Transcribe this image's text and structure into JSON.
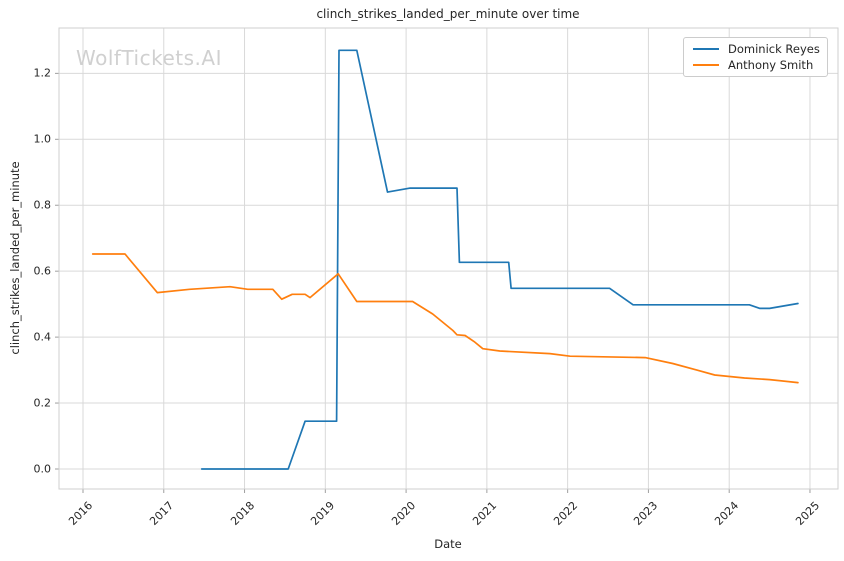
{
  "watermark": "WolfTickets.AI",
  "colors": {
    "series_blue": "#1f77b4",
    "series_orange": "#ff7f0e",
    "grid": "#d9d9d9",
    "spine": "#cfcfcf",
    "tick": "#9e9e9e",
    "text": "#262626"
  },
  "chart_data": {
    "type": "line",
    "title": "clinch_strikes_landed_per_minute over time",
    "xlabel": "Date",
    "ylabel": "clinch_strikes_landed_per_minute",
    "x_ticks": [
      2016,
      2017,
      2018,
      2019,
      2020,
      2021,
      2022,
      2023,
      2024,
      2025
    ],
    "y_ticks": [
      0.0,
      0.2,
      0.4,
      0.6,
      0.8,
      1.0,
      1.2
    ],
    "xlim": [
      2015.703,
      2025.347
    ],
    "ylim": [
      -0.0607,
      1.3376
    ],
    "grid": true,
    "legend_position": "upper right",
    "series": [
      {
        "name": "Dominick Reyes",
        "color": "#1f77b4",
        "x": [
          2017.47,
          2018.54,
          2018.75,
          2019.14,
          2019.17,
          2019.39,
          2019.77,
          2020.05,
          2020.63,
          2020.66,
          2021.27,
          2021.3,
          2022.52,
          2022.81,
          2024.25,
          2024.38,
          2024.5,
          2024.85
        ],
        "y": [
          0.0,
          0.0,
          0.145,
          0.145,
          1.27,
          1.27,
          0.84,
          0.852,
          0.852,
          0.627,
          0.627,
          0.548,
          0.548,
          0.498,
          0.498,
          0.487,
          0.487,
          0.502
        ]
      },
      {
        "name": "Anthony Smith",
        "color": "#ff7f0e",
        "x": [
          2016.12,
          2016.52,
          2016.92,
          2017.32,
          2017.82,
          2018.04,
          2018.35,
          2018.46,
          2018.59,
          2018.75,
          2018.81,
          2019.16,
          2019.39,
          2020.08,
          2020.33,
          2020.58,
          2020.63,
          2020.73,
          2020.85,
          2020.95,
          2021.16,
          2021.78,
          2022.03,
          2022.96,
          2023.3,
          2023.6,
          2023.82,
          2024.19,
          2024.5,
          2024.85
        ],
        "y": [
          0.652,
          0.652,
          0.535,
          0.545,
          0.553,
          0.545,
          0.545,
          0.515,
          0.53,
          0.53,
          0.52,
          0.592,
          0.508,
          0.508,
          0.47,
          0.42,
          0.407,
          0.405,
          0.385,
          0.365,
          0.358,
          0.35,
          0.342,
          0.338,
          0.32,
          0.3,
          0.285,
          0.276,
          0.271,
          0.262
        ]
      }
    ]
  }
}
